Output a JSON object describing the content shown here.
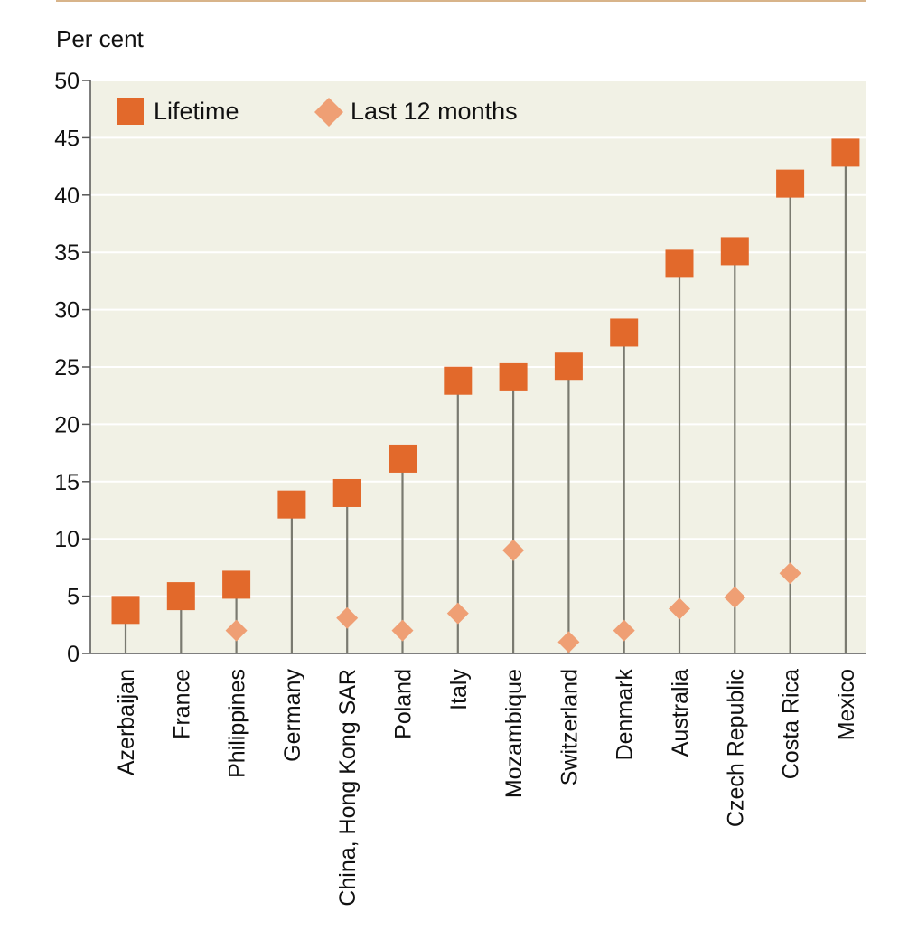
{
  "chart_data": {
    "type": "scatter",
    "title": "",
    "ylabel": "Per cent",
    "xlabel": "",
    "ylim": [
      0,
      50
    ],
    "yticks": [
      0,
      5,
      10,
      15,
      20,
      25,
      30,
      35,
      40,
      45,
      50
    ],
    "categories": [
      "Azerbaijan",
      "France",
      "Philippines",
      "Germany",
      "China, Hong Kong SAR",
      "Poland",
      "Italy",
      "Mozambique",
      "Switzerland",
      "Denmark",
      "Australia",
      "Czech Republic",
      "Costa Rica",
      "Mexico"
    ],
    "series": [
      {
        "name": "Lifetime",
        "marker": "square",
        "color": "#e2692b",
        "values": [
          3.8,
          5,
          6,
          13,
          14,
          17,
          23.8,
          24.1,
          25.1,
          28,
          34,
          35.1,
          41,
          43.7
        ]
      },
      {
        "name": "Last 12 months",
        "marker": "diamond",
        "color": "#ef9f74",
        "values": [
          null,
          null,
          2,
          null,
          3.1,
          2,
          3.5,
          9,
          1,
          2,
          3.9,
          4.9,
          7,
          null
        ]
      }
    ],
    "legend_position": "top-left",
    "grid": true,
    "colors": {
      "plot_bg": "#f1f1e5",
      "grid": "#ffffff",
      "stem": "#7a7a70",
      "axis": "#555555"
    }
  }
}
